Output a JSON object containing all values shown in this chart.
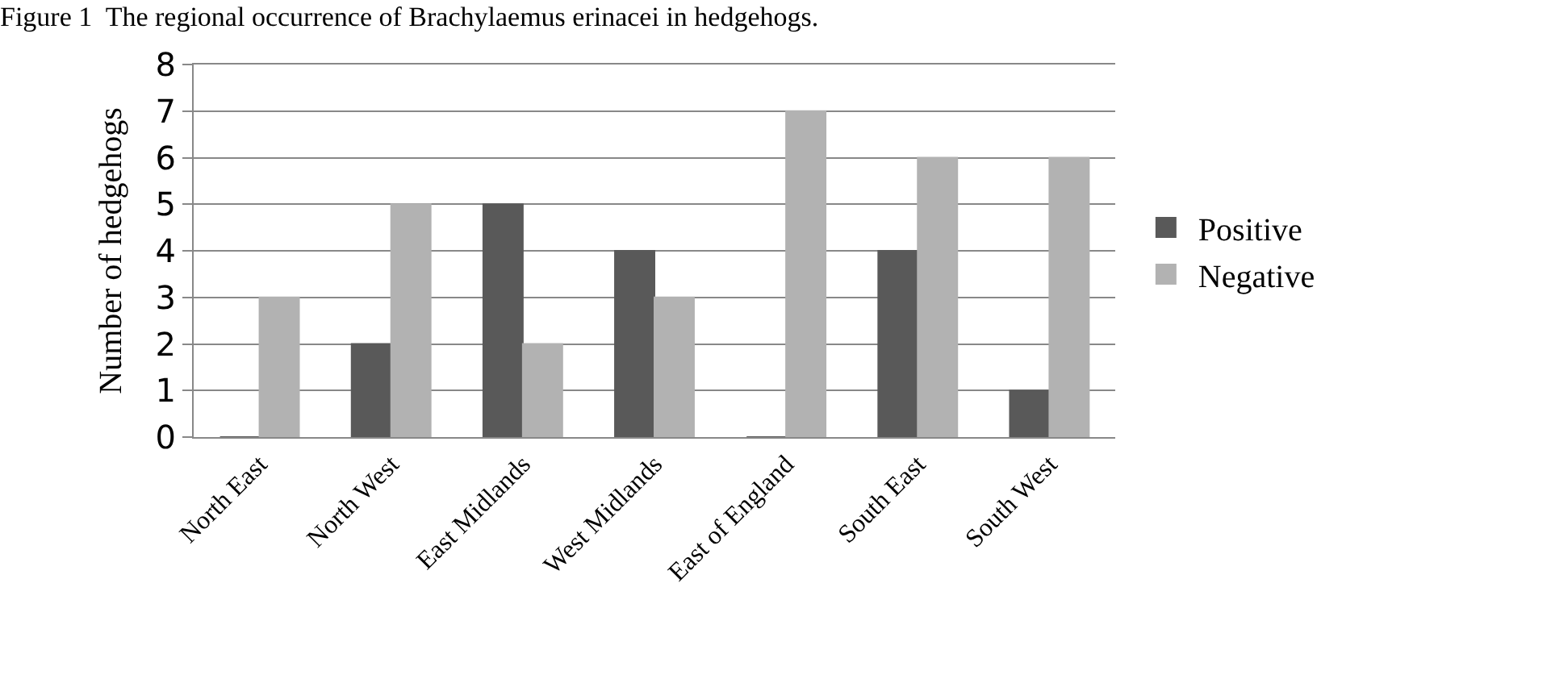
{
  "chart_data": {
    "type": "bar",
    "title": "Figure 1  The regional occurrence of Brachylaemus erinacei in hedgehogs.",
    "ylabel": "Number of hedgehogs",
    "categories": [
      "North East",
      "North West",
      "East Midlands",
      "West Midlands",
      "East of England",
      "South East",
      "South West"
    ],
    "series": [
      {
        "name": "Positive",
        "color": "#595959",
        "values": [
          0,
          2,
          5,
          4,
          0,
          4,
          1
        ]
      },
      {
        "name": "Negative",
        "color": "#b2b2b2",
        "values": [
          3,
          5,
          2,
          3,
          7,
          6,
          6
        ]
      }
    ],
    "ylim": [
      0,
      8
    ],
    "yticks": [
      0,
      1,
      2,
      3,
      4,
      5,
      6,
      7,
      8
    ],
    "grid": "y",
    "legend": "right"
  }
}
